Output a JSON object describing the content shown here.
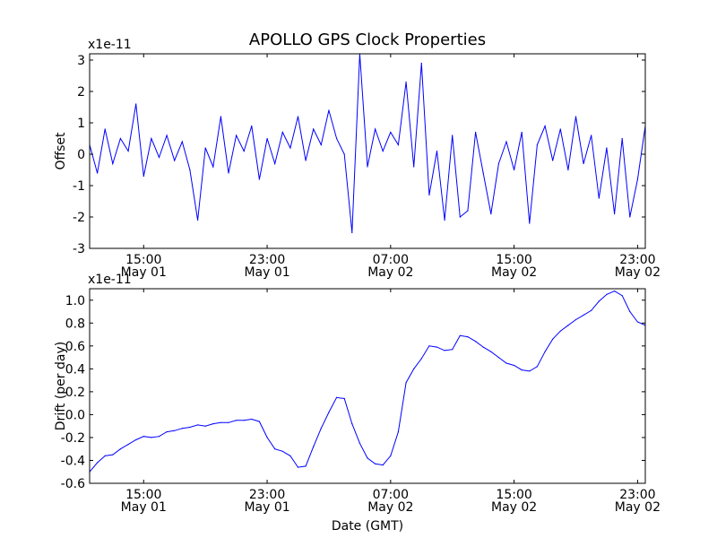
{
  "title": "APOLLO GPS Clock Properties",
  "chart_data": [
    {
      "type": "line",
      "ylabel": "Offset",
      "scale_label": "x1e-11",
      "ylim": [
        -3,
        3.2
      ],
      "yticks": [
        -3,
        -2,
        -1,
        0,
        1,
        2,
        3
      ],
      "ytick_labels": [
        "-3",
        "-2",
        "-1",
        "0",
        "1",
        "2",
        "3"
      ],
      "xlim": [
        11.5,
        47.5
      ],
      "xticks": [
        15,
        23,
        31,
        39,
        47
      ],
      "xtick_labels": [
        [
          "15:00",
          "May 01"
        ],
        [
          "23:00",
          "May 01"
        ],
        [
          "07:00",
          "May 02"
        ],
        [
          "15:00",
          "May 02"
        ],
        [
          "23:00",
          "May 02"
        ]
      ],
      "xlabel": "",
      "color": "#0000ff",
      "series": [
        {
          "x": [
            11.5,
            12.0,
            12.5,
            13.0,
            13.5,
            14.0,
            14.5,
            15.0,
            15.5,
            16.0,
            16.5,
            17.0,
            17.5,
            18.0,
            18.5,
            19.0,
            19.5,
            20.0,
            20.5,
            21.0,
            21.5,
            22.0,
            22.5,
            23.0,
            23.5,
            24.0,
            24.5,
            25.0,
            25.5,
            26.0,
            26.5,
            27.0,
            27.5,
            28.0,
            28.5,
            29.0,
            29.5,
            30.0,
            30.5,
            31.0,
            31.5,
            32.0,
            32.5,
            33.0,
            33.5,
            34.0,
            34.5,
            35.0,
            35.5,
            36.0,
            36.5,
            37.0,
            37.5,
            38.0,
            38.5,
            39.0,
            39.5,
            40.0,
            40.5,
            41.0,
            41.5,
            42.0,
            42.5,
            43.0,
            43.5,
            44.0,
            44.5,
            45.0,
            45.5,
            46.0,
            46.5,
            47.0,
            47.5
          ],
          "values": [
            0.3,
            -0.6,
            0.8,
            -0.3,
            0.5,
            0.1,
            1.6,
            -0.7,
            0.5,
            -0.1,
            0.6,
            -0.2,
            0.4,
            -0.5,
            -2.1,
            0.2,
            -0.4,
            1.2,
            -0.6,
            0.6,
            0.1,
            0.9,
            -0.8,
            0.5,
            -0.3,
            0.7,
            0.2,
            1.2,
            -0.2,
            0.8,
            0.3,
            1.4,
            0.5,
            0.0,
            -2.5,
            3.2,
            -0.4,
            0.8,
            0.1,
            0.7,
            0.3,
            2.3,
            -0.4,
            2.9,
            -1.3,
            0.1,
            -2.1,
            0.6,
            -2.0,
            -1.8,
            0.7,
            -0.6,
            -1.9,
            -0.3,
            0.4,
            -0.5,
            0.7,
            -2.2,
            0.3,
            0.9,
            -0.2,
            0.8,
            -0.5,
            1.2,
            -0.3,
            0.6,
            -1.4,
            0.2,
            -1.9,
            0.5,
            -2.0,
            -0.8,
            0.9
          ]
        }
      ]
    },
    {
      "type": "line",
      "ylabel": "Drift (per day)",
      "scale_label": "x1e-11",
      "ylim": [
        -0.6,
        1.1
      ],
      "yticks": [
        -0.6,
        -0.4,
        -0.2,
        0.0,
        0.2,
        0.4,
        0.6,
        0.8,
        1.0
      ],
      "ytick_labels": [
        "-0.6",
        "-0.4",
        "-0.2",
        "0.0",
        "0.2",
        "0.4",
        "0.6",
        "0.8",
        "1.0"
      ],
      "xlim": [
        11.5,
        47.5
      ],
      "xticks": [
        15,
        23,
        31,
        39,
        47
      ],
      "xtick_labels": [
        [
          "15:00",
          "May 01"
        ],
        [
          "23:00",
          "May 01"
        ],
        [
          "07:00",
          "May 02"
        ],
        [
          "15:00",
          "May 02"
        ],
        [
          "23:00",
          "May 02"
        ]
      ],
      "xlabel": "Date (GMT)",
      "color": "#0000ff",
      "series": [
        {
          "x": [
            11.5,
            12.0,
            12.5,
            13.0,
            13.5,
            14.0,
            14.5,
            15.0,
            15.5,
            16.0,
            16.5,
            17.0,
            17.5,
            18.0,
            18.5,
            19.0,
            19.5,
            20.0,
            20.5,
            21.0,
            21.5,
            22.0,
            22.5,
            23.0,
            23.5,
            24.0,
            24.5,
            25.0,
            25.5,
            26.0,
            26.5,
            27.0,
            27.5,
            28.0,
            28.5,
            29.0,
            29.5,
            30.0,
            30.5,
            31.0,
            31.5,
            32.0,
            32.5,
            33.0,
            33.5,
            34.0,
            34.5,
            35.0,
            35.5,
            36.0,
            36.5,
            37.0,
            37.5,
            38.0,
            38.5,
            39.0,
            39.5,
            40.0,
            40.5,
            41.0,
            41.5,
            42.0,
            42.5,
            43.0,
            43.5,
            44.0,
            44.5,
            45.0,
            45.5,
            46.0,
            46.5,
            47.0,
            47.5
          ],
          "values": [
            -0.5,
            -0.42,
            -0.36,
            -0.35,
            -0.3,
            -0.26,
            -0.22,
            -0.19,
            -0.2,
            -0.19,
            -0.15,
            -0.14,
            -0.12,
            -0.11,
            -0.09,
            -0.1,
            -0.08,
            -0.07,
            -0.07,
            -0.05,
            -0.05,
            -0.04,
            -0.06,
            -0.2,
            -0.3,
            -0.32,
            -0.36,
            -0.46,
            -0.45,
            -0.28,
            -0.12,
            0.02,
            0.15,
            0.14,
            -0.08,
            -0.25,
            -0.38,
            -0.43,
            -0.44,
            -0.36,
            -0.15,
            0.28,
            0.4,
            0.49,
            0.6,
            0.59,
            0.56,
            0.57,
            0.69,
            0.68,
            0.64,
            0.59,
            0.55,
            0.5,
            0.45,
            0.43,
            0.39,
            0.38,
            0.42,
            0.55,
            0.66,
            0.73,
            0.78,
            0.83,
            0.87,
            0.91,
            0.99,
            1.05,
            1.08,
            1.04,
            0.9,
            0.81,
            0.78
          ]
        }
      ]
    }
  ]
}
